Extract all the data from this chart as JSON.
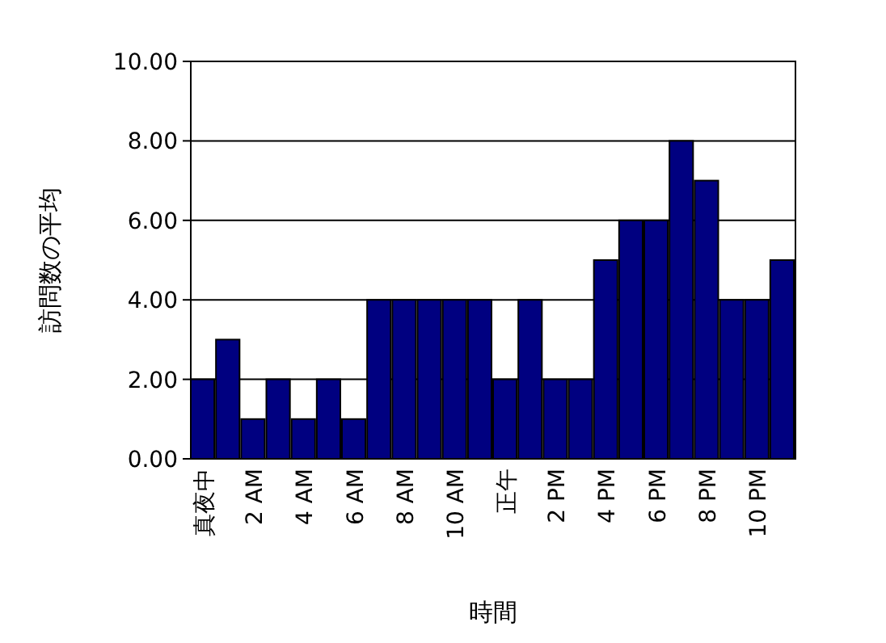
{
  "chart_data": {
    "type": "bar",
    "xlabel": "時間",
    "ylabel": "訪問数の平均",
    "categories": [
      "真夜中",
      null,
      "2 AM",
      null,
      "4 AM",
      null,
      "6 AM",
      null,
      "8 AM",
      null,
      "10 AM",
      null,
      "正午",
      null,
      "2 PM",
      null,
      "4 PM",
      null,
      "6 PM",
      null,
      "8 PM",
      null,
      "10 PM",
      null
    ],
    "values": [
      2,
      3,
      1,
      2,
      1,
      2,
      1,
      4,
      4,
      4,
      4,
      4,
      2,
      4,
      2,
      2,
      5,
      6,
      6,
      8,
      7,
      4,
      4,
      5
    ],
    "color": "#000080",
    "ylim": [
      0,
      10
    ],
    "yticks": [
      {
        "value": 0,
        "label": "0.00"
      },
      {
        "value": 2,
        "label": "2.00"
      },
      {
        "value": 4,
        "label": "4.00"
      },
      {
        "value": 6,
        "label": "6.00"
      },
      {
        "value": 8,
        "label": "8.00"
      },
      {
        "value": 10,
        "label": "10.00"
      }
    ],
    "grid": "y"
  }
}
